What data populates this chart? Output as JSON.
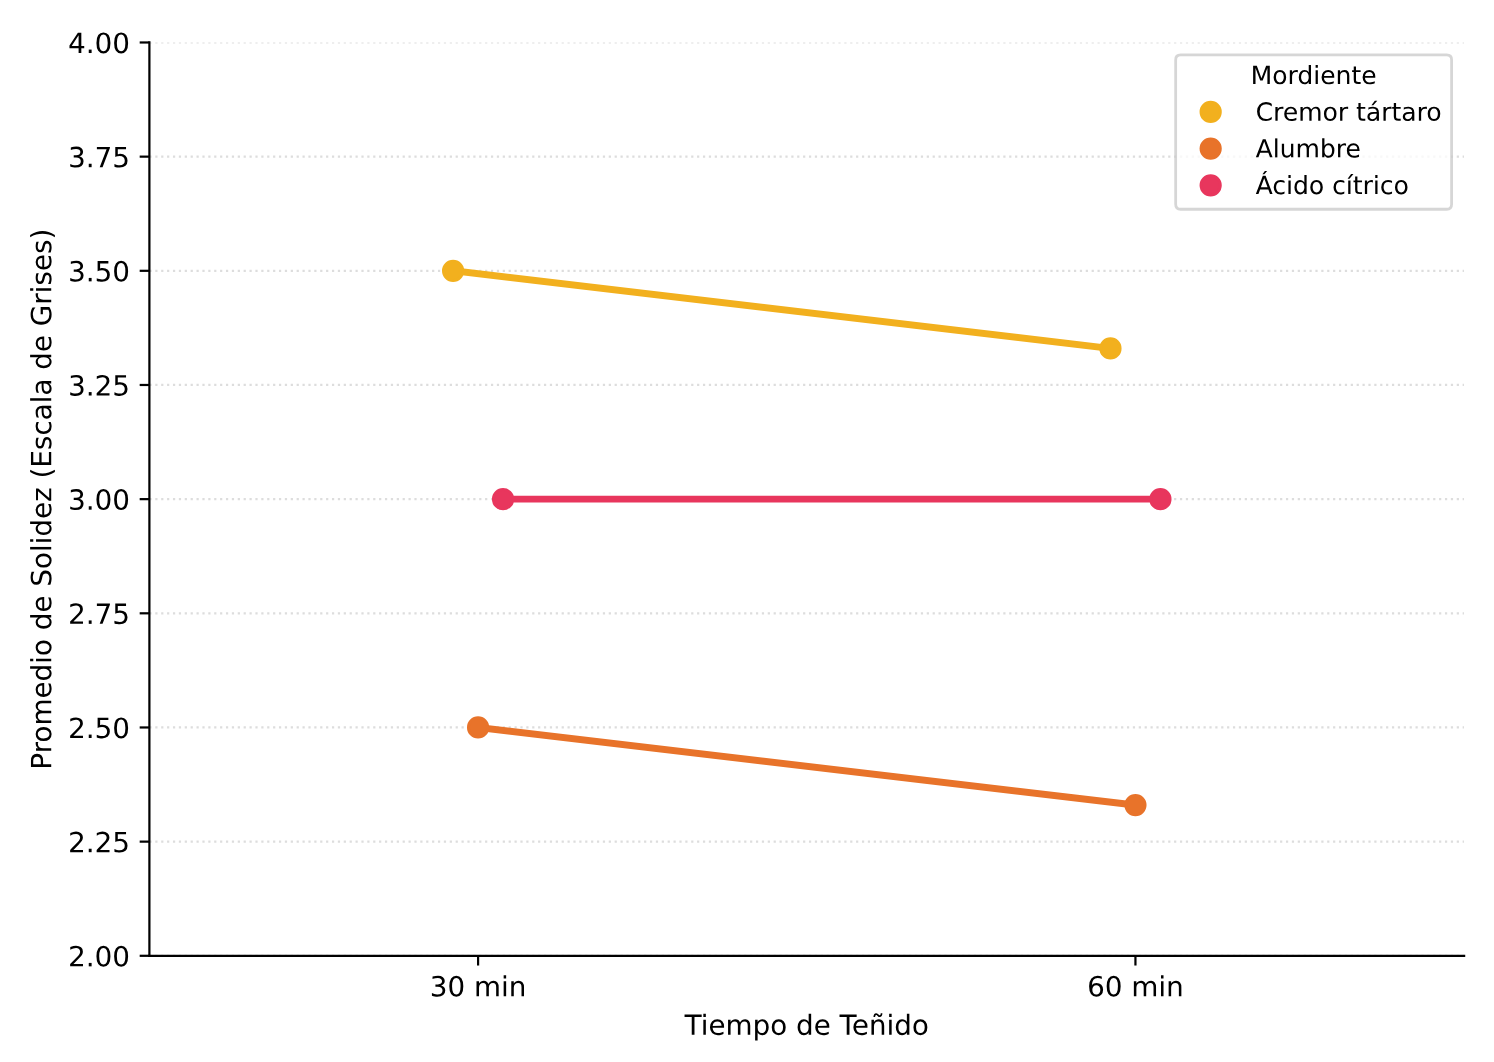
{
  "chart_data": {
    "type": "line",
    "xlabel": "Tiempo de Teñido",
    "ylabel": "Promedio de Solidez (Escala de Grises)",
    "legend_title": "Mordiente",
    "categories": [
      "30 min",
      "60 min"
    ],
    "series": [
      {
        "name": "Cremor tártaro",
        "color": "#f2b01e",
        "values": [
          3.5,
          3.33
        ]
      },
      {
        "name": "Alumbre",
        "color": "#e8732a",
        "values": [
          2.5,
          2.33
        ]
      },
      {
        "name": "Ácido cítrico",
        "color": "#e8365d",
        "values": [
          3.0,
          3.0
        ]
      }
    ],
    "ylim": [
      2.0,
      4.0
    ],
    "yticks": [
      {
        "value": 2.0,
        "label": "2.00"
      },
      {
        "value": 2.25,
        "label": "2.25"
      },
      {
        "value": 2.5,
        "label": "2.50"
      },
      {
        "value": 2.75,
        "label": "2.75"
      },
      {
        "value": 3.0,
        "label": "3.00"
      },
      {
        "value": 3.25,
        "label": "3.25"
      },
      {
        "value": 3.5,
        "label": "3.50"
      },
      {
        "value": 3.75,
        "label": "3.75"
      },
      {
        "value": 4.0,
        "label": "4.00"
      }
    ],
    "grid": "y",
    "legend": "top right",
    "marker": "circle",
    "line_style": "solid"
  }
}
